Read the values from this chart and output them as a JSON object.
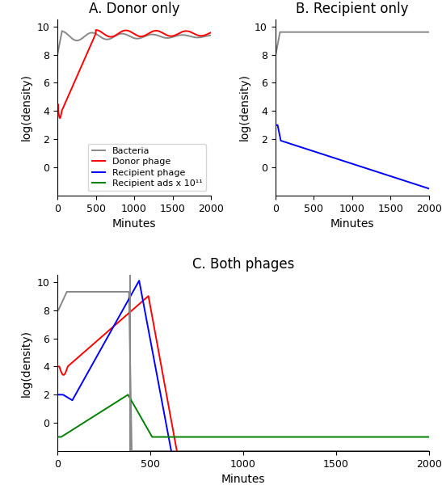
{
  "title_A": "A. Donor only",
  "title_B": "B. Recipient only",
  "title_C": "C. Both phages",
  "xlabel": "Minutes",
  "ylabel": "log(density)",
  "ylim": [
    -2,
    10.5
  ],
  "xlim": [
    0,
    2000
  ],
  "colors": {
    "bacteria": "#888888",
    "donor": "red",
    "recipient": "blue",
    "recipient_ads": "green"
  },
  "legend_labels": [
    "Bacteria",
    "Donor phage",
    "Recipient phage",
    "Recipient ads x 10¹¹"
  ],
  "title_fontsize": 12,
  "axis_fontsize": 10,
  "tick_fontsize": 9,
  "legend_fontsize": 8
}
